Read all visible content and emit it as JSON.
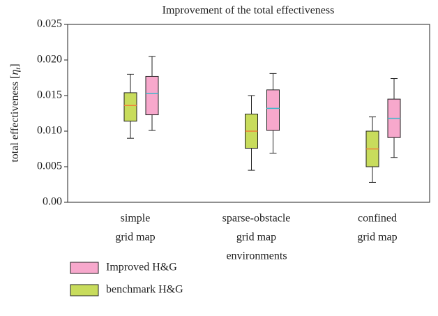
{
  "chart_data": {
    "type": "box",
    "title": "Improvement of the total effectiveness",
    "ylabel_parts": [
      "total effectiveness [",
      "η",
      "t",
      "]"
    ],
    "xlabel": "environments",
    "categories": [
      [
        "simple",
        "grid map"
      ],
      [
        "sparse-obstacle",
        "grid map"
      ],
      [
        "confined",
        "grid map"
      ]
    ],
    "ylim": [
      0,
      0.025
    ],
    "yticks": [
      {
        "value": 0,
        "label": "0.00"
      },
      0.005,
      {
        "value": 0.01,
        "label": "0.010"
      },
      0.015,
      {
        "value": 0.02,
        "label": "0.020"
      },
      0.025
    ],
    "legend": "bottom-left",
    "series": [
      {
        "name": "Improved H&G",
        "color": "#f7a8cc",
        "median_color": "#3fb6c9",
        "boxes": [
          {
            "low": 0.0101,
            "q1": 0.0123,
            "median": 0.0153,
            "q3": 0.0177,
            "high": 0.0205
          },
          {
            "low": 0.0069,
            "q1": 0.0101,
            "median": 0.0132,
            "q3": 0.0158,
            "high": 0.0181
          },
          {
            "low": 0.0063,
            "q1": 0.0091,
            "median": 0.0118,
            "q3": 0.0145,
            "high": 0.0174
          }
        ]
      },
      {
        "name": "benchmark H&G",
        "color": "#c8dc5c",
        "median_color": "#f0803a",
        "boxes": [
          {
            "low": 0.009,
            "q1": 0.0114,
            "median": 0.0136,
            "q3": 0.0154,
            "high": 0.018
          },
          {
            "low": 0.0045,
            "q1": 0.0076,
            "median": 0.01,
            "q3": 0.0124,
            "high": 0.015
          },
          {
            "low": 0.0028,
            "q1": 0.005,
            "median": 0.0075,
            "q3": 0.01,
            "high": 0.012
          }
        ]
      }
    ]
  }
}
